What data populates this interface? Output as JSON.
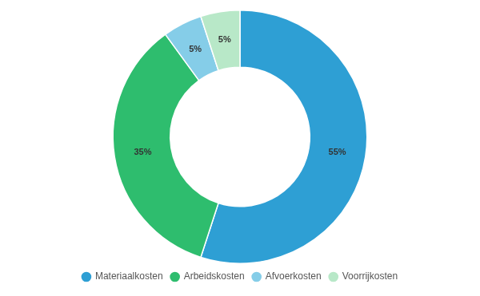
{
  "chart_data": {
    "type": "donut",
    "categories": [
      "Materiaalkosten",
      "Arbeidskosten",
      "Afvoerkosten",
      "Voorrijkosten"
    ],
    "values": [
      55,
      35,
      5,
      5
    ],
    "value_labels": [
      "55%",
      "35%",
      "5%",
      "5%"
    ],
    "colors": [
      "#2e9fd4",
      "#2ebd6e",
      "#85cde8",
      "#b8e8c8"
    ],
    "data_labels": true,
    "legend": "bottom"
  }
}
